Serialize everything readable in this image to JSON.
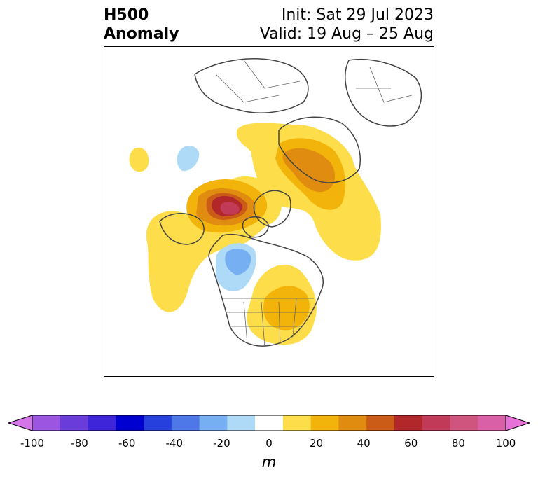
{
  "title": {
    "left_line1": "H500",
    "left_line2": "Anomaly",
    "right_line1": "Init: Sat 29 Jul 2023",
    "right_line2": "Valid: 19 Aug – 25 Aug"
  },
  "colorbar": {
    "unit": "m",
    "ticks": [
      "-100",
      "-80",
      "-60",
      "-40",
      "-20",
      "0",
      "20",
      "40",
      "60",
      "80",
      "100"
    ],
    "colors": [
      "#d475e8",
      "#9b55e0",
      "#6a3ddb",
      "#3f25d9",
      "#0000d0",
      "#2540dc",
      "#4e78e8",
      "#77b0f2",
      "#aedaf8",
      "#ffffff",
      "#fddd4a",
      "#f2b40a",
      "#e08c10",
      "#cb5c18",
      "#b2282a",
      "#c13a58",
      "#cf557e",
      "#d95fa6",
      "#e672d8"
    ]
  }
}
